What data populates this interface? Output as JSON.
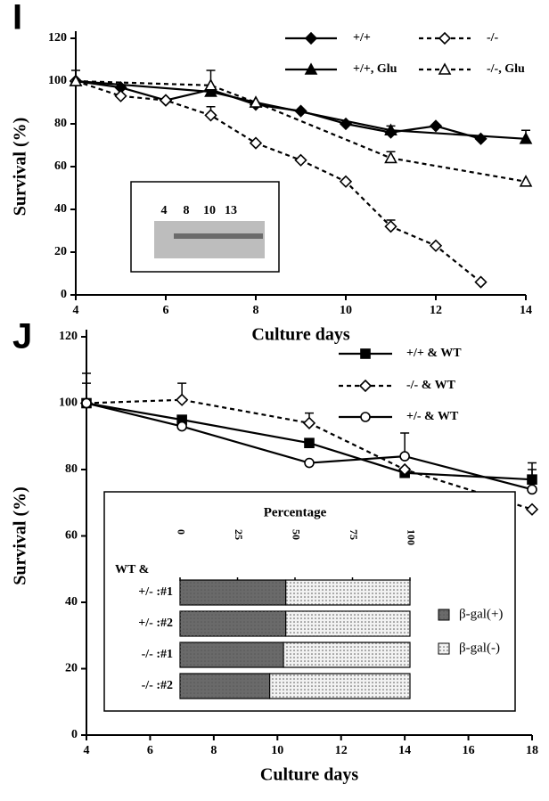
{
  "chart_data": [
    {
      "type": "line",
      "panel_label": "I",
      "xlabel": "Culture days",
      "ylabel": "Survival (%)",
      "xlim": [
        4,
        14
      ],
      "xticks": [
        4,
        6,
        8,
        10,
        12,
        14
      ],
      "ylim": [
        0,
        120
      ],
      "yticks": [
        0,
        20,
        40,
        60,
        80,
        100,
        120
      ],
      "legend": "upper right",
      "inset": {
        "lane_labels": [
          "4",
          "8",
          "10",
          "13"
        ]
      },
      "series": [
        {
          "name": "+/+",
          "color": "#000",
          "marker": "diamond",
          "filled": true,
          "dashed": false,
          "x": [
            4,
            5,
            6,
            7,
            8,
            9,
            10,
            11,
            12,
            13
          ],
          "values": [
            100,
            97,
            91,
            96,
            89,
            86,
            80,
            76,
            79,
            73
          ],
          "errors": [
            null,
            null,
            null,
            null,
            null,
            null,
            null,
            3,
            null,
            null
          ]
        },
        {
          "name": "-/-",
          "color": "#000",
          "marker": "diamond",
          "filled": false,
          "dashed": true,
          "x": [
            4,
            5,
            6,
            7,
            8,
            9,
            10,
            11,
            12,
            13
          ],
          "values": [
            100,
            93,
            91,
            84,
            71,
            63,
            53,
            32,
            23,
            6
          ],
          "errors": [
            null,
            null,
            null,
            4,
            null,
            null,
            null,
            3,
            null,
            null
          ]
        },
        {
          "name": "+/+, Glu",
          "color": "#000",
          "marker": "triangle",
          "filled": true,
          "dashed": false,
          "x": [
            4,
            7,
            8,
            11,
            14
          ],
          "values": [
            100,
            95,
            90,
            77,
            73
          ],
          "errors": [
            5,
            null,
            null,
            null,
            4
          ]
        },
        {
          "name": "-/-, Glu",
          "color": "#000",
          "marker": "triangle",
          "filled": false,
          "dashed": true,
          "x": [
            4,
            7,
            8,
            11,
            14
          ],
          "values": [
            100,
            98,
            90,
            64,
            53
          ],
          "errors": [
            null,
            7,
            null,
            3,
            null
          ]
        }
      ]
    },
    {
      "type": "line",
      "panel_label": "J",
      "xlabel": "Culture days",
      "ylabel": "Survival (%)",
      "xlim": [
        4,
        18
      ],
      "xticks": [
        4,
        6,
        8,
        10,
        12,
        14,
        16,
        18
      ],
      "ylim": [
        0,
        120
      ],
      "yticks": [
        0,
        20,
        40,
        60,
        80,
        100,
        120
      ],
      "legend": "upper right",
      "series": [
        {
          "name": "+/+ & WT",
          "color": "#000",
          "marker": "square",
          "filled": true,
          "dashed": false,
          "x": [
            4,
            7,
            11,
            14,
            18
          ],
          "values": [
            100,
            95,
            88,
            79,
            77
          ],
          "errors": [
            9,
            null,
            null,
            null,
            3
          ]
        },
        {
          "name": "-/- & WT",
          "color": "#000",
          "marker": "diamond",
          "filled": false,
          "dashed": true,
          "x": [
            4,
            7,
            11,
            14,
            18
          ],
          "values": [
            100,
            101,
            94,
            80,
            68
          ],
          "errors": [
            null,
            5,
            3,
            null,
            null
          ]
        },
        {
          "name": "+/- & WT",
          "color": "#000",
          "marker": "circle",
          "filled": false,
          "dashed": false,
          "x": [
            4,
            7,
            11,
            14,
            18
          ],
          "values": [
            100,
            93,
            82,
            84,
            74
          ],
          "errors": [
            6,
            null,
            null,
            7,
            8
          ]
        }
      ]
    },
    {
      "type": "hbar",
      "stacked": true,
      "title": "Percentage",
      "row_header": "WT &",
      "xlim": [
        0,
        100
      ],
      "xticks": [
        0,
        25,
        50,
        75,
        100
      ],
      "categories": [
        "+/- :#1",
        "+/- :#2",
        "-/- :#1",
        "-/- :#2"
      ],
      "series": [
        {
          "name": "β-gal(+)",
          "color": "#6a6a6a",
          "values": [
            46,
            46,
            45,
            39
          ]
        },
        {
          "name": "β-gal(-)",
          "color": "#f2f2f2",
          "values": [
            54,
            54,
            55,
            61
          ]
        }
      ]
    }
  ]
}
